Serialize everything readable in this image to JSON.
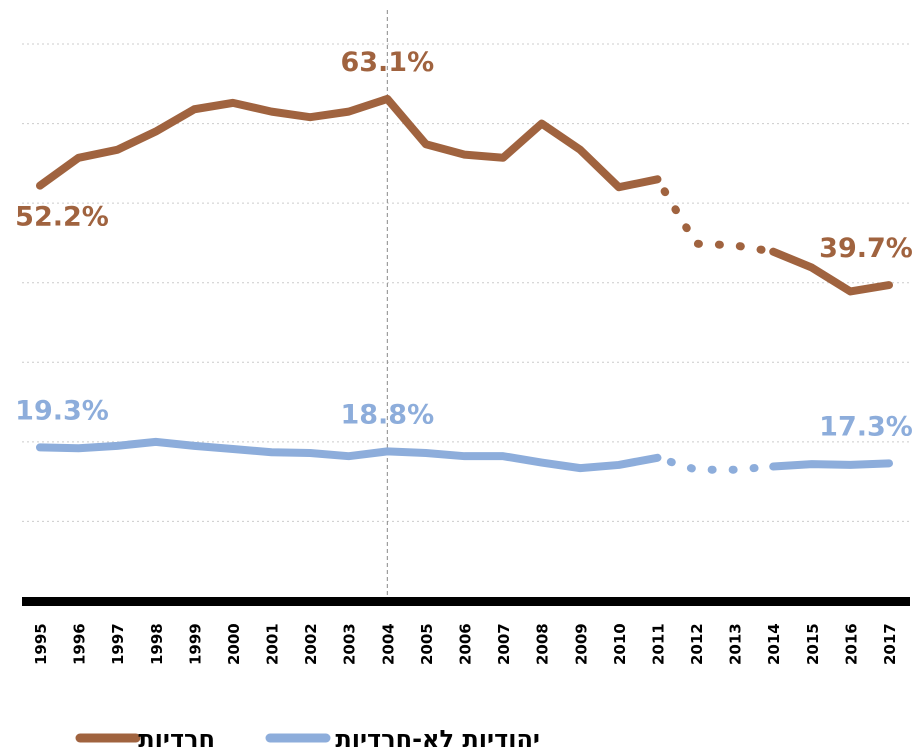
{
  "chart_data": {
    "type": "line",
    "categories": [
      "1995",
      "1996",
      "1997",
      "1998",
      "1999",
      "2000",
      "2001",
      "2002",
      "2003",
      "2004",
      "2005",
      "2006",
      "2007",
      "2008",
      "2009",
      "2010",
      "2011",
      "2012",
      "2013",
      "2014",
      "2015",
      "2016",
      "2017"
    ],
    "series": [
      {
        "name": "חרדיות",
        "color": "#a0633f",
        "values": [
          52.2,
          55.7,
          56.7,
          59.0,
          61.8,
          62.6,
          61.5,
          60.8,
          61.5,
          63.1,
          57.4,
          56.1,
          55.7,
          60.0,
          56.7,
          52.0,
          53.0,
          44.9,
          44.7,
          43.9,
          41.9,
          38.9,
          39.7
        ],
        "value_labels": [
          "52.2%",
          null,
          null,
          null,
          null,
          null,
          null,
          null,
          null,
          "63.1%",
          null,
          null,
          null,
          null,
          null,
          null,
          null,
          null,
          null,
          null,
          null,
          null,
          "39.7%"
        ]
      },
      {
        "name": "יהודיות לא-חרדיות",
        "color": "#8daddb",
        "values": [
          19.3,
          19.2,
          19.5,
          20.0,
          19.5,
          19.1,
          18.7,
          18.6,
          18.2,
          18.8,
          18.6,
          18.2,
          18.2,
          17.4,
          16.7,
          17.1,
          18.0,
          16.5,
          16.5,
          16.9,
          17.2,
          17.1,
          17.3
        ],
        "value_labels": [
          "19.3%",
          null,
          null,
          null,
          null,
          null,
          null,
          null,
          null,
          "18.8%",
          null,
          null,
          null,
          null,
          null,
          null,
          null,
          null,
          null,
          null,
          null,
          null,
          "17.3%"
        ]
      }
    ],
    "ylim": [
      0,
      70
    ],
    "yticks": [
      10,
      20,
      30,
      40,
      50,
      60,
      70
    ],
    "grid": true,
    "dashed": {
      "from": "2011",
      "to": "2014"
    },
    "reference_line": "2004",
    "legend": "bottom"
  }
}
